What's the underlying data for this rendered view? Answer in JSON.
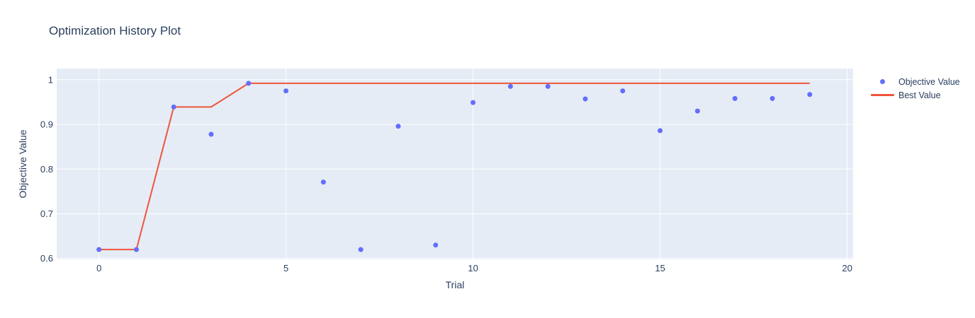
{
  "title": "Optimization History Plot",
  "legend": {
    "items": [
      {
        "label": "Objective Value",
        "marker": "dot",
        "color": "#636efa"
      },
      {
        "label": "Best Value",
        "marker": "line",
        "color": "#ef553b"
      }
    ]
  },
  "chart_data": {
    "type": "scatter",
    "title": "Optimization History Plot",
    "xlabel": "Trial",
    "ylabel": "Objective Value",
    "x": [
      0,
      1,
      2,
      3,
      4,
      5,
      6,
      7,
      8,
      9,
      10,
      11,
      12,
      13,
      14,
      15,
      16,
      17,
      18,
      19
    ],
    "series": [
      {
        "name": "Objective Value",
        "mode": "markers",
        "color": "#636efa",
        "values": [
          0.62,
          0.62,
          0.939,
          0.878,
          0.992,
          0.975,
          0.771,
          0.62,
          0.896,
          0.63,
          0.949,
          0.985,
          0.985,
          0.957,
          0.975,
          0.886,
          0.93,
          0.958,
          0.958,
          0.967
        ]
      },
      {
        "name": "Best Value",
        "mode": "line",
        "color": "#ef553b",
        "values": [
          0.62,
          0.62,
          0.939,
          0.939,
          0.992,
          0.992,
          0.992,
          0.992,
          0.992,
          0.992,
          0.992,
          0.992,
          0.992,
          0.992,
          0.992,
          0.992,
          0.992,
          0.992,
          0.992,
          0.992
        ]
      }
    ],
    "xlim": [
      -1.13,
      20.16
    ],
    "ylim": [
      0.598,
      1.025
    ],
    "xtick_values": [
      0,
      5,
      10,
      15,
      20
    ],
    "xtick_labels": [
      "0",
      "5",
      "10",
      "15",
      "20"
    ],
    "ytick_values": [
      0.6,
      0.7,
      0.8,
      0.9,
      1
    ],
    "ytick_labels": [
      "0.6",
      "0.7",
      "0.8",
      "0.9",
      "1"
    ],
    "grid": true,
    "legend_position": "right-top",
    "colors": {
      "plot_background": "#e5ecf6",
      "grid": "#ffffff",
      "text": "#2a3f5f",
      "page_background": "#ffffff"
    }
  }
}
